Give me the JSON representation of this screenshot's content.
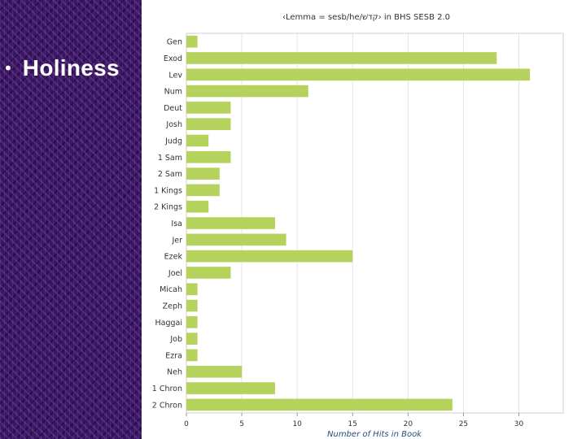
{
  "slide": {
    "bullet_symbol": "•",
    "bullet_text": "Holiness"
  },
  "chart_data": {
    "type": "bar",
    "orientation": "horizontal",
    "title": "‹Lemma = sesb/he/קדשׁ› in BHS SESB 2.0",
    "xlabel": "Number of Hits in Book",
    "ylabel": "",
    "xlim": [
      0,
      34
    ],
    "x_ticks": [
      0,
      5,
      10,
      15,
      20,
      25,
      30
    ],
    "grid": true,
    "bar_color": "#b5d25d",
    "categories": [
      "Gen",
      "Exod",
      "Lev",
      "Num",
      "Deut",
      "Josh",
      "Judg",
      "1 Sam",
      "2 Sam",
      "1 Kings",
      "2 Kings",
      "Isa",
      "Jer",
      "Ezek",
      "Joel",
      "Micah",
      "Zeph",
      "Haggai",
      "Job",
      "Ezra",
      "Neh",
      "1 Chron",
      "2 Chron"
    ],
    "values": [
      1,
      28,
      31,
      11,
      4,
      4,
      2,
      4,
      3,
      3,
      2,
      8,
      9,
      15,
      4,
      1,
      1,
      1,
      1,
      1,
      5,
      8,
      24
    ]
  }
}
